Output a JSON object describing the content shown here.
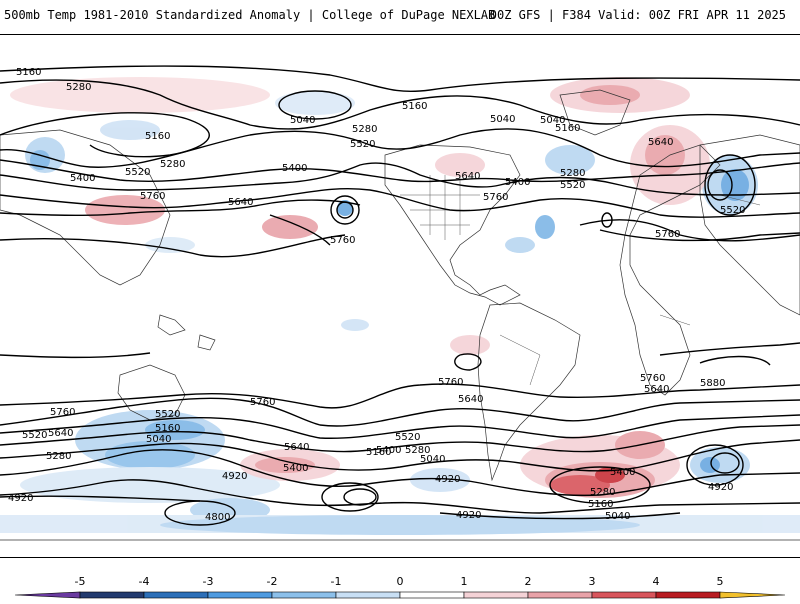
{
  "header": {
    "title": "500mb Temp 1981-2010 Standardized Anomaly | College of DuPage NEXLAB",
    "run_info": "00Z GFS | F384 Valid: 00Z FRI APR 11 2025"
  },
  "contour_labels": [
    "5160",
    "5280",
    "5040",
    "5160",
    "5280",
    "5400",
    "5520",
    "5760",
    "5640",
    "5760",
    "5040",
    "5280",
    "5520",
    "5400",
    "5160",
    "5640",
    "5400",
    "5760",
    "5520",
    "5040",
    "5160",
    "5280",
    "5640",
    "5520",
    "5760",
    "5880",
    "5760",
    "5640",
    "5760",
    "5640",
    "5760",
    "5520",
    "5160",
    "5040",
    "5640",
    "5400",
    "5280",
    "5520",
    "5400",
    "5160",
    "5280",
    "5040",
    "4920",
    "4920",
    "4920",
    "4800",
    "5400",
    "5520",
    "5280",
    "5160",
    "4920",
    "5040",
    "5760",
    "5640",
    "4920"
  ],
  "colorbar": {
    "ticks": [
      "-5",
      "-4",
      "-3",
      "-2",
      "-1",
      "0",
      "1",
      "2",
      "3",
      "4",
      "5"
    ],
    "colors": [
      "#6a3aa0",
      "#223a6e",
      "#2c6fb8",
      "#4f9be0",
      "#8cc0ea",
      "#c8dff4",
      "#ffffff",
      "#f4d2d6",
      "#e8a2a8",
      "#d8555c",
      "#b81c22",
      "#7a0a10",
      "#f2c02c"
    ]
  }
}
